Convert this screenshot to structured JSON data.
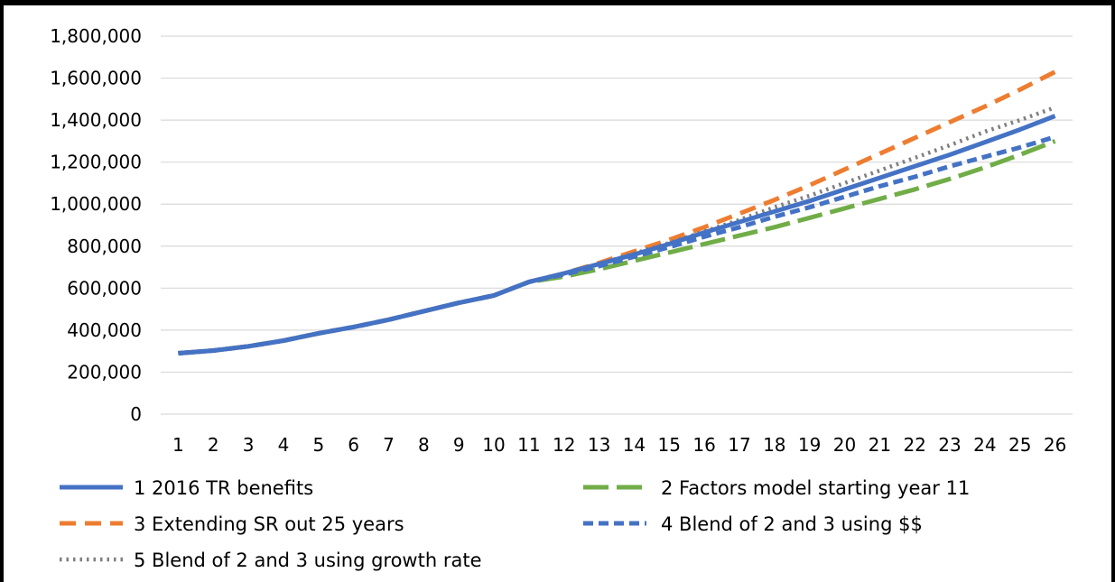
{
  "chart_data": {
    "type": "line",
    "title": "",
    "xlabel": "",
    "ylabel": "",
    "ylim": [
      0,
      1800000
    ],
    "y_ticks": [
      0,
      200000,
      400000,
      600000,
      800000,
      1000000,
      1200000,
      1400000,
      1600000,
      1800000
    ],
    "y_tick_labels": [
      "0",
      "200,000",
      "400,000",
      "600,000",
      "800,000",
      "1,000,000",
      "1,200,000",
      "1,400,000",
      "1,600,000",
      "1,800,000"
    ],
    "categories": [
      "1",
      "2",
      "3",
      "4",
      "5",
      "6",
      "7",
      "8",
      "9",
      "10",
      "11",
      "12",
      "13",
      "14",
      "15",
      "16",
      "17",
      "18",
      "19",
      "20",
      "21",
      "22",
      "23",
      "24",
      "25",
      "26"
    ],
    "grid": "horizontal",
    "legend_position": "bottom",
    "series": [
      {
        "name": "1 2016 TR benefits",
        "color": "#4472C4",
        "style": "solid",
        "values": [
          290000,
          303000,
          323000,
          350000,
          385000,
          415000,
          450000,
          490000,
          530000,
          565000,
          630000,
          670000,
          715000,
          760000,
          810000,
          865000,
          915000,
          965000,
          1015000,
          1070000,
          1125000,
          1180000,
          1235000,
          1295000,
          1355000,
          1420000
        ]
      },
      {
        "name": "2 Factors model starting year 11",
        "color": "#70AD47",
        "style": "long-dash",
        "values": [
          290000,
          303000,
          323000,
          350000,
          385000,
          415000,
          450000,
          490000,
          530000,
          565000,
          630000,
          655000,
          690000,
          730000,
          770000,
          810000,
          850000,
          890000,
          935000,
          980000,
          1025000,
          1070000,
          1120000,
          1175000,
          1235000,
          1300000
        ]
      },
      {
        "name": "3 Extending SR out 25 years",
        "color": "#ED7D31",
        "style": "dash",
        "values": [
          290000,
          303000,
          323000,
          350000,
          385000,
          415000,
          450000,
          490000,
          530000,
          565000,
          630000,
          670000,
          720000,
          775000,
          830000,
          890000,
          955000,
          1020000,
          1090000,
          1165000,
          1240000,
          1315000,
          1390000,
          1465000,
          1545000,
          1630000
        ]
      },
      {
        "name": "4 Blend of 2 and 3 using $$",
        "color": "#4472C4",
        "style": "short-dash",
        "values": [
          290000,
          303000,
          323000,
          350000,
          385000,
          415000,
          450000,
          490000,
          530000,
          565000,
          630000,
          665000,
          705000,
          750000,
          795000,
          845000,
          890000,
          940000,
          985000,
          1035000,
          1085000,
          1130000,
          1180000,
          1225000,
          1270000,
          1320000
        ]
      },
      {
        "name": "5 Blend of 2 and 3 using growth rate",
        "color": "#7F7F7F",
        "style": "dot",
        "values": [
          290000,
          303000,
          323000,
          350000,
          385000,
          415000,
          450000,
          490000,
          530000,
          565000,
          630000,
          670000,
          715000,
          765000,
          815000,
          870000,
          925000,
          985000,
          1040000,
          1100000,
          1160000,
          1220000,
          1280000,
          1345000,
          1400000,
          1460000
        ]
      }
    ]
  },
  "legend": {
    "items": [
      "1 2016 TR benefits",
      "2 Factors model starting year 11",
      "3 Extending SR out 25 years",
      "4 Blend of 2 and 3 using $$",
      "5 Blend of 2 and 3 using growth rate"
    ]
  }
}
